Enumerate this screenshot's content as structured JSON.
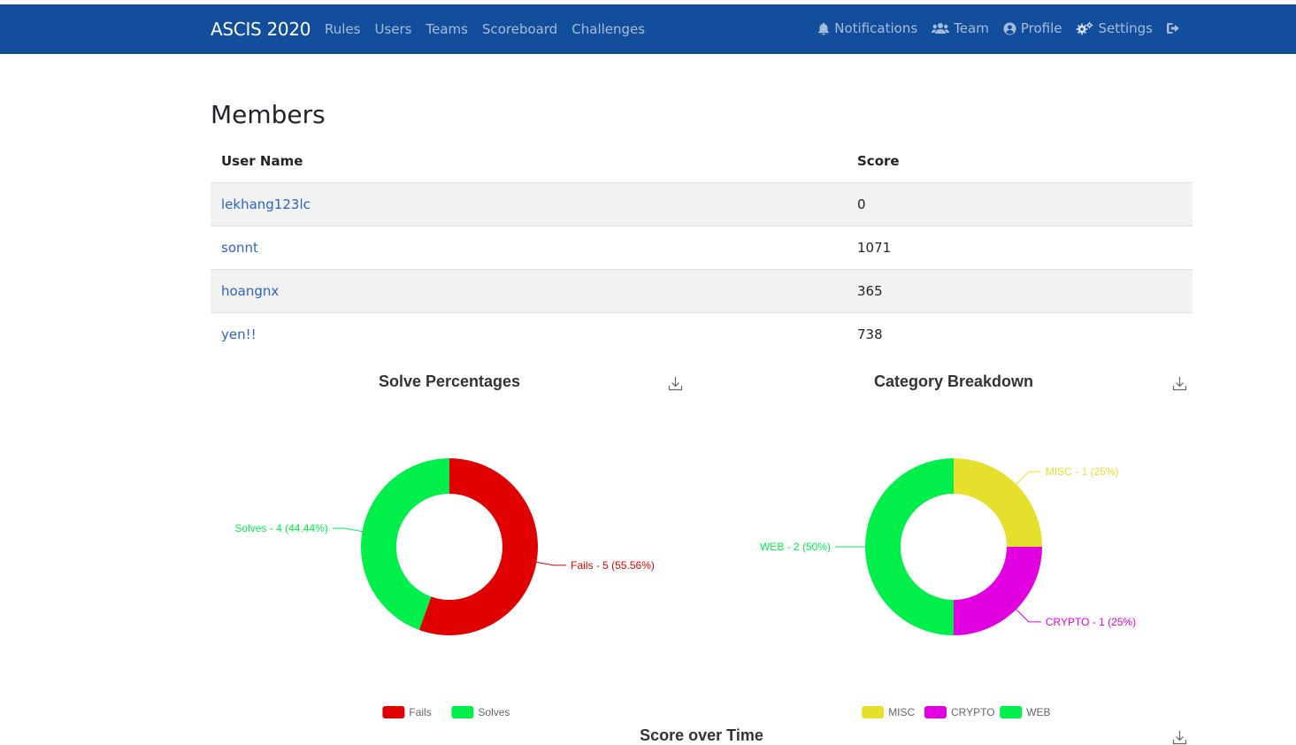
{
  "navbar": {
    "brand": "ASCIS 2020",
    "left_items": [
      "Rules",
      "Users",
      "Teams",
      "Scoreboard",
      "Challenges"
    ],
    "right_items": [
      {
        "label": "Notifications",
        "icon": "bell-icon"
      },
      {
        "label": "Team",
        "icon": "users-icon"
      },
      {
        "label": "Profile",
        "icon": "user-circle-icon"
      },
      {
        "label": "Settings",
        "icon": "cogs-icon"
      },
      {
        "label": "",
        "icon": "logout-icon"
      }
    ]
  },
  "members": {
    "title": "Members",
    "columns": [
      "User Name",
      "Score"
    ],
    "rows": [
      {
        "name": "lekhang123lc",
        "score": "0"
      },
      {
        "name": "sonnt",
        "score": "1071"
      },
      {
        "name": "hoangnx",
        "score": "365"
      },
      {
        "name": "yen!!",
        "score": "738"
      }
    ]
  },
  "charts": {
    "solve_title": "Solve Percentages",
    "category_title": "Category Breakdown",
    "score_title": "Score over Time"
  },
  "chart_data": [
    {
      "type": "pie",
      "title": "Solve Percentages",
      "slices": [
        {
          "name": "Fails",
          "value": 5,
          "label": "Fails - 5 (55.56%)",
          "color": "#e00000"
        },
        {
          "name": "Solves",
          "value": 4,
          "label": "Solves - 4 (44.44%)",
          "color": "#00ef4b"
        }
      ],
      "legend": "bottom"
    },
    {
      "type": "pie",
      "title": "Category Breakdown",
      "slices": [
        {
          "name": "MISC",
          "value": 1,
          "label": "MISC - 1 (25%)",
          "color": "#e5e02c"
        },
        {
          "name": "CRYPTO",
          "value": 1,
          "label": "CRYPTO - 1 (25%)",
          "color": "#e000e0"
        },
        {
          "name": "WEB",
          "value": 2,
          "label": "WEB - 2 (50%)",
          "color": "#00ef4b"
        }
      ],
      "legend": "bottom"
    }
  ]
}
